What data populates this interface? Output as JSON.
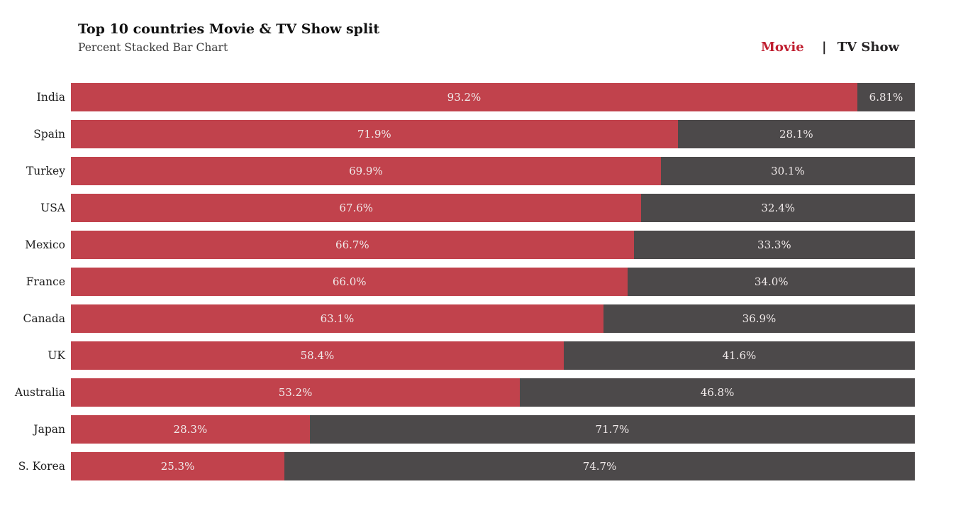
{
  "legend": {
    "separator": "|"
  },
  "colors": {
    "background": "#ffffff",
    "movie_bar": "#c1424c",
    "tv_bar": "#4c494a",
    "legend_movie_text": "#c01f30",
    "legend_tv_text": "#262324",
    "legend_separator_text": "#262324",
    "value_label_text": "#f0eaea",
    "category_label_text": "#1c1c1c",
    "title_text": "#111111",
    "subtitle_text": "#3a3a3a"
  },
  "chart_data": {
    "type": "bar",
    "orientation": "horizontal",
    "stacked": true,
    "units": "percent",
    "title": "Top 10 countries Movie & TV Show split",
    "subtitle": "Percent Stacked Bar Chart",
    "xlim": [
      0,
      100
    ],
    "grid": false,
    "legend_position": "top-right",
    "categories": [
      "India",
      "Spain",
      "Turkey",
      "USA",
      "Mexico",
      "France",
      "Canada",
      "UK",
      "Australia",
      "Japan",
      "S. Korea"
    ],
    "series": [
      {
        "name": "Movie",
        "color": "#c1424c",
        "values": [
          93.2,
          71.9,
          69.9,
          67.6,
          66.7,
          66.0,
          63.1,
          58.4,
          53.2,
          28.3,
          25.3
        ],
        "labels": [
          "93.2%",
          "71.9%",
          "69.9%",
          "67.6%",
          "66.7%",
          "66.0%",
          "63.1%",
          "58.4%",
          "53.2%",
          "28.3%",
          "25.3%"
        ]
      },
      {
        "name": "TV Show",
        "color": "#4c494a",
        "values": [
          6.81,
          28.1,
          30.1,
          32.4,
          33.3,
          34.0,
          36.9,
          41.6,
          46.8,
          71.7,
          74.7
        ],
        "labels": [
          "6.81%",
          "28.1%",
          "30.1%",
          "32.4%",
          "33.3%",
          "34.0%",
          "36.9%",
          "41.6%",
          "46.8%",
          "71.7%",
          "74.7%"
        ]
      }
    ]
  }
}
